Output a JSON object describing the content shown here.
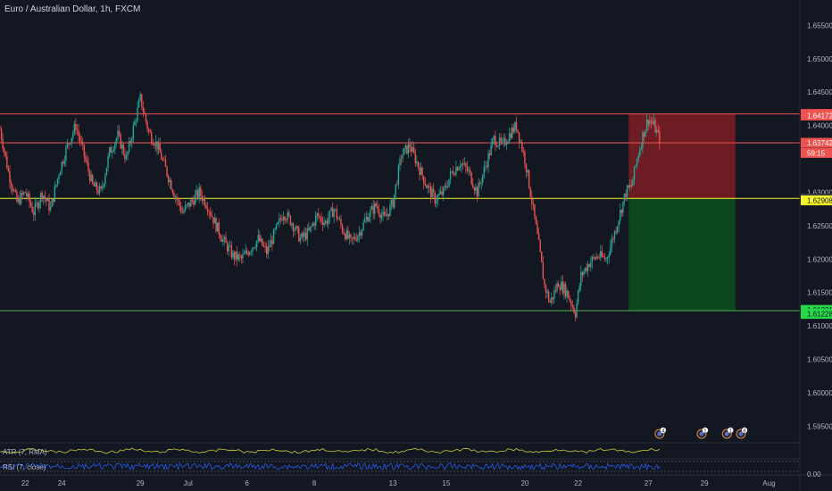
{
  "header": {
    "title": "Euro / Australian Dollar, 1h, FXCM"
  },
  "colors": {
    "background": "#131722",
    "up": "#26a69a",
    "down": "#ef5350",
    "resistance": "#ef5350",
    "support": "#4caf50",
    "entry": "#f5f52a",
    "stop_zone": "#7f1d23",
    "target_zone": "#0d4a1c",
    "atr_line": "#c9c93a",
    "rsi_line": "#2962ff"
  },
  "chart_data": {
    "type": "candlestick",
    "symbol": "Euro / Australian Dollar",
    "interval": "1h",
    "source": "FXCM",
    "y_ticks": [
      "1.65500",
      "1.65000",
      "1.64500",
      "1.64000",
      "1.63000",
      "1.62500",
      "1.62000",
      "1.61500",
      "1.61000",
      "1.60500",
      "1.60000",
      "1.59500"
    ],
    "ylim": [
      1.5925,
      1.6588
    ],
    "x_ticks": [
      "22",
      "24",
      "29",
      "Jul",
      "6",
      "8",
      "13",
      "15",
      "20",
      "22",
      "27",
      "29",
      "Aug"
    ],
    "price_path": [
      [
        0,
        1.6395
      ],
      [
        3,
        1.633
      ],
      [
        6,
        1.6285
      ],
      [
        9,
        1.63
      ],
      [
        12,
        1.627
      ],
      [
        15,
        1.63
      ],
      [
        18,
        1.6275
      ],
      [
        21,
        1.633
      ],
      [
        24,
        1.637
      ],
      [
        27,
        1.64
      ],
      [
        30,
        1.6355
      ],
      [
        33,
        1.631
      ],
      [
        36,
        1.63
      ],
      [
        39,
        1.636
      ],
      [
        42,
        1.6385
      ],
      [
        45,
        1.635
      ],
      [
        48,
        1.6405
      ],
      [
        50,
        1.644
      ],
      [
        53,
        1.639
      ],
      [
        56,
        1.637
      ],
      [
        59,
        1.6335
      ],
      [
        62,
        1.63
      ],
      [
        65,
        1.627
      ],
      [
        68,
        1.6285
      ],
      [
        71,
        1.63
      ],
      [
        74,
        1.628
      ],
      [
        77,
        1.625
      ],
      [
        80,
        1.6225
      ],
      [
        83,
        1.6205
      ],
      [
        86,
        1.62
      ],
      [
        89,
        1.6215
      ],
      [
        92,
        1.623
      ],
      [
        95,
        1.621
      ],
      [
        98,
        1.624
      ],
      [
        101,
        1.627
      ],
      [
        104,
        1.6255
      ],
      [
        107,
        1.623
      ],
      [
        110,
        1.624
      ],
      [
        113,
        1.6265
      ],
      [
        116,
        1.6255
      ],
      [
        119,
        1.6275
      ],
      [
        122,
        1.6245
      ],
      [
        125,
        1.6225
      ],
      [
        128,
        1.624
      ],
      [
        131,
        1.6265
      ],
      [
        134,
        1.628
      ],
      [
        137,
        1.626
      ],
      [
        140,
        1.6285
      ],
      [
        143,
        1.6355
      ],
      [
        146,
        1.637
      ],
      [
        149,
        1.634
      ],
      [
        152,
        1.631
      ],
      [
        155,
        1.629
      ],
      [
        158,
        1.63
      ],
      [
        161,
        1.633
      ],
      [
        164,
        1.6345
      ],
      [
        167,
        1.633
      ],
      [
        170,
        1.63
      ],
      [
        173,
        1.634
      ],
      [
        176,
        1.638
      ],
      [
        179,
        1.637
      ],
      [
        182,
        1.639
      ],
      [
        184,
        1.64
      ],
      [
        187,
        1.635
      ],
      [
        189,
        1.63
      ],
      [
        192,
        1.622
      ],
      [
        194,
        1.616
      ],
      [
        196,
        1.6135
      ],
      [
        199,
        1.6165
      ],
      [
        202,
        1.615
      ],
      [
        205,
        1.612
      ],
      [
        207,
        1.6175
      ],
      [
        210,
        1.6195
      ],
      [
        213,
        1.6205
      ],
      [
        216,
        1.62
      ],
      [
        219,
        1.624
      ],
      [
        221,
        1.627
      ],
      [
        223,
        1.63
      ],
      [
        225,
        1.631
      ],
      [
        227,
        1.635
      ],
      [
        229,
        1.6385
      ],
      [
        231,
        1.641
      ],
      [
        233,
        1.64
      ],
      [
        235,
        1.638
      ]
    ],
    "levels": [
      {
        "name": "resistance",
        "price": 1.64174,
        "label": "1.64174"
      },
      {
        "name": "mid",
        "price": 1.63742,
        "label": "1.63742"
      },
      {
        "name": "entry",
        "price": 1.6291,
        "label": "1.62910"
      },
      {
        "name": "support",
        "price": 1.61228,
        "label": "1.61228"
      }
    ],
    "price_labels": [
      {
        "text": "1.64174",
        "price": 1.64174,
        "bg": "#ef5350",
        "fg": "#ffffff"
      },
      {
        "text": "1.64172",
        "price": 1.6415,
        "bg": "#ef5350",
        "fg": "#ffffff"
      },
      {
        "text": "1.63742",
        "price": 1.63742,
        "bg": "#ef5350",
        "fg": "#ffffff"
      },
      {
        "text": "59:15",
        "price": 1.6359,
        "bg": "#ef5350",
        "fg": "#ffffff"
      },
      {
        "text": "1.62910",
        "price": 1.6291,
        "bg": "#363a45",
        "fg": "#d1d4dc"
      },
      {
        "text": "1.62908",
        "price": 1.6288,
        "bg": "#f5f52a",
        "fg": "#131722"
      },
      {
        "text": "1.61231",
        "price": 1.6124,
        "bg": "#26d94a",
        "fg": "#131722"
      },
      {
        "text": "1.61228",
        "price": 1.6118,
        "bg": "#26d94a",
        "fg": "#131722"
      }
    ],
    "position": {
      "type": "short",
      "entry": 1.6291,
      "stop": 1.64174,
      "target": 1.61228,
      "x_start": 224,
      "x_end": 262
    },
    "last_index": 235,
    "x_total": 285
  },
  "indicators": {
    "atr_label": "ATR (7, RMA)",
    "rsi_label": "RSI (7, close)",
    "rsi_value": "0.00"
  },
  "events": [
    "4",
    "1",
    "1",
    "8"
  ]
}
